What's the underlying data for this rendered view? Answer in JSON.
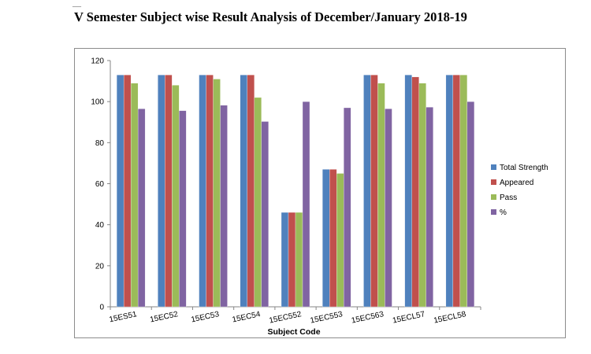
{
  "header": {
    "dash": "—",
    "title": "V Semester Subject wise Result Analysis of December/January 2018-19"
  },
  "chart_data": {
    "type": "bar",
    "title": "",
    "xlabel": "Subject Code",
    "ylabel": "",
    "ylim": [
      0,
      120
    ],
    "yticks": [
      0,
      20,
      40,
      60,
      80,
      100,
      120
    ],
    "grid": false,
    "legend_position": "right",
    "categories": [
      "15ES51",
      "15EC52",
      "15EC53",
      "15EC54",
      "15EC552",
      "15EC553",
      "15EC563",
      "15ECL57",
      "15ECL58"
    ],
    "series": [
      {
        "name": "Total Strength",
        "color": "#4f81bd",
        "values": [
          113,
          113,
          113,
          113,
          46,
          67,
          113,
          113,
          113
        ]
      },
      {
        "name": "Appeared",
        "color": "#c0504d",
        "values": [
          113,
          113,
          113,
          113,
          46,
          67,
          113,
          112,
          113
        ]
      },
      {
        "name": "Pass",
        "color": "#9bbb59",
        "values": [
          109,
          108,
          111,
          102,
          46,
          65,
          109,
          109,
          113
        ]
      },
      {
        "name": "%",
        "color": "#8064a2",
        "values": [
          96.5,
          95.6,
          98.2,
          90.3,
          100,
          97,
          96.5,
          97.3,
          100
        ]
      }
    ]
  }
}
